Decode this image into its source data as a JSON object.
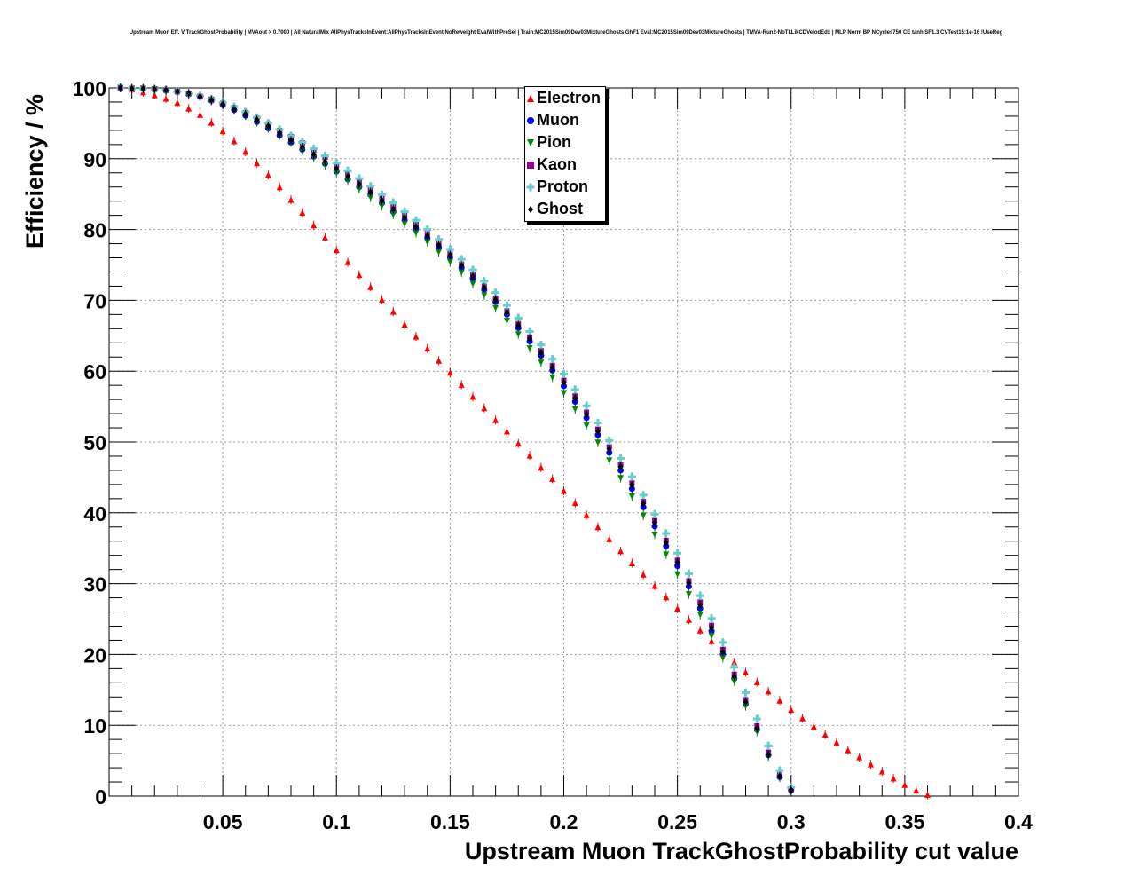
{
  "title": "Upstream Muon Eff. V TrackGhostProbability | MVAout > 0.7000 | All NaturalMix AllPhysTracksInEvent:AllPhysTracksInEvent NoReweight EvalWithPreSel | Train:MC2015Sim09Dev03MixtureGhosts GhF1 Eval:MC2015Sim09Dev03MixtureGhosts | TMVA-Run2-NoTkLikCDVelodEdx | MLP Norm BP NCycles750 CE tanh SF1.3 CVTest15:1e-16 !UseReg",
  "chart_data": {
    "type": "scatter",
    "title": "Upstream Muon Eff. V TrackGhostProbability | MVAout > 0.7000 | All NaturalMix AllPhysTracksInEvent:AllPhysTracksInEvent NoReweight EvalWithPreSel | Train:MC2015Sim09Dev03MixtureGhosts GhF1 Eval:MC2015Sim09Dev03MixtureGhosts | TMVA-Run2-NoTkLikCDVelodEdx | MLP Norm BP NCycles750 CE tanh SF1.3 CVTest15:1e-16 !UseReg",
    "xlabel": "Upstream Muon TrackGhostProbability cut value",
    "ylabel": "Efficiency / %",
    "xlim": [
      0.0,
      0.4
    ],
    "ylim": [
      0,
      100
    ],
    "xticks": [
      "0.05",
      "0.1",
      "0.15",
      "0.2",
      "0.25",
      "0.3",
      "0.35",
      "0.4"
    ],
    "yticks": [
      "0",
      "10",
      "20",
      "30",
      "40",
      "50",
      "60",
      "70",
      "80",
      "90",
      "100"
    ],
    "grid": true,
    "legend_position": "top-center",
    "x_start": 0.005,
    "x_step": 0.005,
    "series": [
      {
        "name": "Electron",
        "color": "#ff0000",
        "marker": "triangle-up",
        "values": [
          100.0,
          99.8,
          99.4,
          99.0,
          98.5,
          97.9,
          97.1,
          96.2,
          95.1,
          93.9,
          92.5,
          91.0,
          89.4,
          87.7,
          86.0,
          84.2,
          82.4,
          80.6,
          78.9,
          77.1,
          75.4,
          73.6,
          71.9,
          70.1,
          68.4,
          66.6,
          64.9,
          63.2,
          61.5,
          59.8,
          58.1,
          56.4,
          54.8,
          53.1,
          51.5,
          49.8,
          48.1,
          46.4,
          44.8,
          43.1,
          41.4,
          39.7,
          38.0,
          36.3,
          34.6,
          32.9,
          31.3,
          29.7,
          28.1,
          26.5,
          24.9,
          23.4,
          21.9,
          20.4,
          18.9,
          17.5,
          16.1,
          14.8,
          13.5,
          12.2,
          11.0,
          9.8,
          8.7,
          7.6,
          6.5,
          5.5,
          4.5,
          3.5,
          2.5,
          1.6,
          0.8,
          0.2
        ]
      },
      {
        "name": "Muon",
        "color": "#0000ff",
        "marker": "circle",
        "values": [
          100.0,
          99.9,
          99.9,
          99.8,
          99.6,
          99.4,
          99.1,
          98.7,
          98.2,
          97.6,
          96.9,
          96.1,
          95.2,
          94.3,
          93.3,
          92.3,
          91.3,
          90.3,
          89.3,
          88.2,
          87.1,
          86.0,
          84.9,
          83.7,
          82.5,
          81.3,
          80.1,
          78.8,
          77.5,
          76.1,
          74.6,
          73.1,
          71.5,
          69.8,
          68.0,
          66.1,
          64.2,
          62.2,
          60.1,
          57.9,
          55.7,
          53.4,
          51.0,
          48.5,
          46.0,
          43.4,
          40.8,
          38.1,
          35.3,
          32.5,
          29.6,
          26.5,
          23.3,
          20.0,
          16.6,
          13.0,
          9.4,
          5.8,
          2.7,
          0.8
        ]
      },
      {
        "name": "Pion",
        "color": "#008800",
        "marker": "triangle-down",
        "values": [
          100.0,
          99.9,
          99.9,
          99.8,
          99.6,
          99.4,
          99.1,
          98.7,
          98.2,
          97.6,
          96.9,
          96.1,
          95.2,
          94.3,
          93.3,
          92.3,
          91.2,
          90.2,
          89.1,
          88.0,
          86.9,
          85.7,
          84.5,
          83.3,
          82.1,
          80.8,
          79.5,
          78.2,
          76.8,
          75.4,
          73.9,
          72.3,
          70.7,
          68.9,
          67.1,
          65.2,
          63.2,
          61.2,
          59.1,
          56.9,
          54.6,
          52.3,
          49.9,
          47.4,
          44.9,
          42.3,
          39.6,
          36.9,
          34.1,
          31.3,
          28.5,
          25.6,
          22.6,
          19.5,
          16.2,
          12.7,
          9.1,
          5.6,
          2.6,
          0.7
        ]
      },
      {
        "name": "Kaon",
        "color": "#990099",
        "marker": "square",
        "values": [
          100.0,
          99.9,
          99.9,
          99.8,
          99.7,
          99.5,
          99.2,
          98.8,
          98.4,
          97.8,
          97.2,
          96.5,
          95.7,
          94.9,
          94.0,
          93.1,
          92.2,
          91.2,
          90.2,
          89.1,
          88.0,
          86.8,
          85.6,
          84.4,
          83.2,
          82.0,
          80.7,
          79.4,
          78.0,
          76.6,
          75.1,
          73.6,
          72.0,
          70.3,
          68.5,
          66.7,
          64.8,
          62.9,
          60.8,
          58.7,
          56.5,
          54.2,
          51.8,
          49.3,
          46.8,
          44.2,
          41.6,
          38.9,
          36.1,
          33.3,
          30.4,
          27.4,
          24.1,
          20.7,
          17.2,
          13.6,
          9.9,
          6.2,
          3.0,
          1.0
        ]
      },
      {
        "name": "Proton",
        "color": "#66cccc",
        "marker": "cross",
        "values": [
          100.0,
          99.9,
          99.9,
          99.8,
          99.7,
          99.5,
          99.2,
          98.9,
          98.4,
          97.9,
          97.3,
          96.6,
          95.8,
          95.0,
          94.1,
          93.2,
          92.3,
          91.4,
          90.4,
          89.4,
          88.3,
          87.2,
          86.1,
          84.9,
          83.8,
          82.5,
          81.3,
          80.0,
          78.6,
          77.2,
          75.8,
          74.3,
          72.7,
          71.1,
          69.3,
          67.5,
          65.6,
          63.7,
          61.7,
          59.6,
          57.4,
          55.1,
          52.7,
          50.2,
          47.7,
          45.1,
          42.5,
          39.8,
          37.1,
          34.3,
          31.4,
          28.3,
          25.1,
          21.7,
          18.2,
          14.6,
          10.9,
          7.1,
          3.6,
          1.2
        ]
      },
      {
        "name": "Ghost",
        "color": "#000000",
        "marker": "diamond",
        "values": [
          100.0,
          99.9,
          99.9,
          99.8,
          99.7,
          99.5,
          99.2,
          98.8,
          98.3,
          97.7,
          97.0,
          96.3,
          95.5,
          94.6,
          93.6,
          92.6,
          91.6,
          90.6,
          89.6,
          88.6,
          87.5,
          86.4,
          85.3,
          84.1,
          82.9,
          81.7,
          80.4,
          79.1,
          77.8,
          76.4,
          74.9,
          73.4,
          71.8,
          70.1,
          68.3,
          66.5,
          64.6,
          62.6,
          60.5,
          58.4,
          56.2,
          53.9,
          51.5,
          49.0,
          46.5,
          43.9,
          41.3,
          38.6,
          35.8,
          33.0,
          30.1,
          27.0,
          23.8,
          20.4,
          16.9,
          13.3,
          9.6,
          5.9,
          2.8,
          0.9
        ]
      }
    ]
  }
}
